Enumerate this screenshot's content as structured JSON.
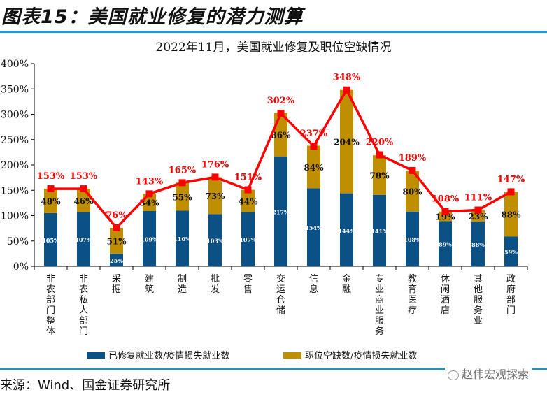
{
  "figure": {
    "title": "图表15：美国就业修复的潜力测算",
    "source": "来源：Wind、国金证券研究所",
    "watermark": "赵伟宏观探索"
  },
  "colors": {
    "repaired": "#0b5185",
    "vacancy": "#bf8f00",
    "total_line": "#ff0000",
    "total_label": "#ff0000",
    "rule": "#1f9ad6"
  },
  "chart_data": {
    "type": "bar",
    "stacked": true,
    "title": "2022年11月，美国就业修复及职位空缺情况",
    "xlabel": "",
    "ylabel": "",
    "ylim": [
      0,
      400
    ],
    "yticks": [
      "0%",
      "50%",
      "100%",
      "150%",
      "200%",
      "250%",
      "300%",
      "350%",
      "400%"
    ],
    "grid": false,
    "legend_position": "bottom",
    "categories": [
      "非农部门整体",
      "非农私人部门",
      "采掘",
      "建筑",
      "制造",
      "批发",
      "零售",
      "交运仓储",
      "信息",
      "金融",
      "专业商业服务",
      "教育医疗",
      "休闲酒店",
      "其他服务业",
      "政府部门"
    ],
    "series": [
      {
        "name": "已修复就业数/疫情损失就业数",
        "kind": "bar",
        "values": [
          105,
          107,
          25,
          109,
          110,
          103,
          107,
          217,
          154,
          144,
          141,
          108,
          89,
          88,
          59
        ],
        "labels": [
          "105%",
          "107%",
          "25%",
          "109%",
          "110%",
          "103%",
          "107%",
          "217%",
          "154%",
          "144%",
          "141%",
          "108%",
          "89%",
          "88%",
          "59%"
        ]
      },
      {
        "name": "职位空缺数/疫情损失就业数",
        "kind": "bar",
        "values": [
          48,
          46,
          51,
          34,
          55,
          73,
          44,
          86,
          84,
          204,
          78,
          80,
          19,
          23,
          88
        ],
        "labels": [
          "48%",
          "46%",
          "51%",
          "34%",
          "55%",
          "73%",
          "44%",
          "86%",
          "84%",
          "204%",
          "78%",
          "80%",
          "19%",
          "23%",
          "88%"
        ]
      },
      {
        "name": "合计",
        "kind": "line",
        "values": [
          153,
          153,
          76,
          143,
          165,
          176,
          151,
          302,
          237,
          348,
          220,
          189,
          108,
          111,
          147
        ],
        "labels": [
          "153%",
          "153%",
          "76%",
          "143%",
          "165%",
          "176%",
          "151%",
          "302%",
          "237%",
          "348%",
          "220%",
          "189%",
          "108%",
          "111%",
          "147%"
        ]
      }
    ]
  }
}
